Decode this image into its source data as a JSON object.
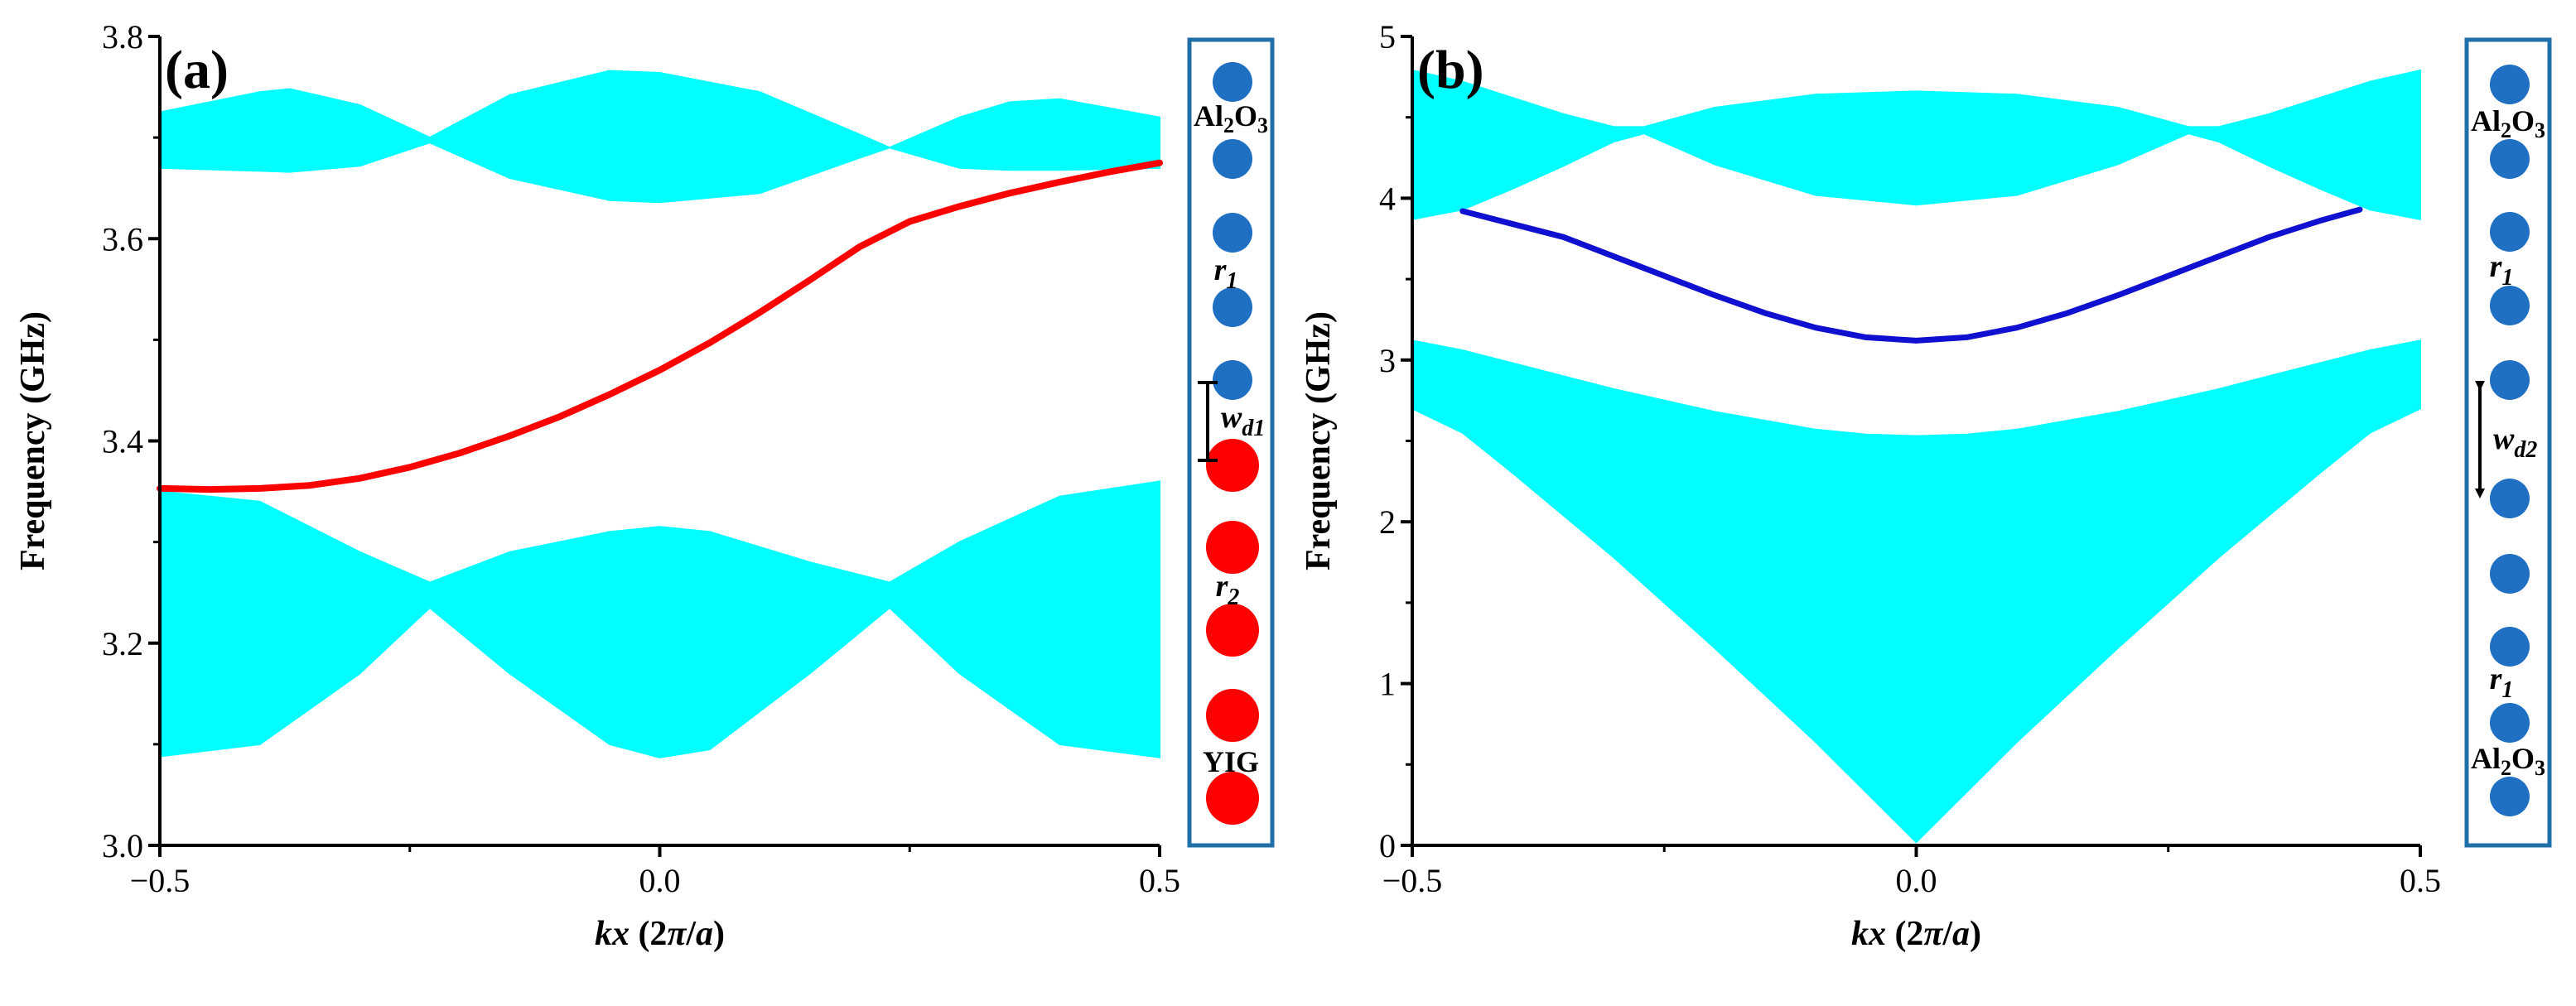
{
  "colors": {
    "band": "#00ffff",
    "edge_a": "#ff0000",
    "edge_b": "#1010d0",
    "air_rod": "#1f6fc2",
    "yig_rod": "#ff0000",
    "inset_border": "#1f6fa8"
  },
  "chart_data": [
    {
      "type": "area",
      "panel_label": "(a)",
      "title": "",
      "xlabel": "kx (2π/a)",
      "xlabel_parts": {
        "var": "kx",
        "mid": " (2",
        "pi": "π",
        "slash": "/",
        "a": "a",
        "close": ")"
      },
      "ylabel": "Frequency (GHz)",
      "xlim": [
        -0.5,
        0.5
      ],
      "ylim": [
        3.0,
        3.8
      ],
      "xticks": [
        -0.5,
        0.0,
        0.5
      ],
      "xtick_labels": [
        "−0.5",
        "0.0",
        "0.5"
      ],
      "yticks": [
        3.0,
        3.2,
        3.4,
        3.6,
        3.8
      ],
      "ytick_labels": [
        "3.0",
        "3.2",
        "3.4",
        "3.6",
        "3.8"
      ],
      "bands": [
        {
          "name": "upper bulk band",
          "x": [
            -0.5,
            -0.4,
            -0.37,
            -0.3,
            -0.23,
            -0.15,
            -0.05,
            0.0,
            0.1,
            0.2,
            0.23,
            0.3,
            0.35,
            0.4,
            0.5
          ],
          "lower": [
            3.67,
            3.667,
            3.666,
            3.672,
            3.695,
            3.66,
            3.638,
            3.636,
            3.645,
            3.68,
            3.69,
            3.67,
            3.668,
            3.668,
            3.67
          ],
          "upper": [
            3.725,
            3.745,
            3.748,
            3.732,
            3.7,
            3.742,
            3.766,
            3.764,
            3.745,
            3.703,
            3.69,
            3.72,
            3.735,
            3.738,
            3.72
          ]
        },
        {
          "name": "lower bulk band",
          "x": [
            -0.5,
            -0.4,
            -0.3,
            -0.23,
            -0.15,
            -0.05,
            0.0,
            0.05,
            0.15,
            0.23,
            0.3,
            0.4,
            0.5
          ],
          "lower": [
            3.088,
            3.1,
            3.17,
            3.235,
            3.17,
            3.1,
            3.087,
            3.095,
            3.17,
            3.235,
            3.17,
            3.1,
            3.087
          ],
          "upper": [
            3.35,
            3.34,
            3.29,
            3.26,
            3.29,
            3.31,
            3.315,
            3.31,
            3.28,
            3.26,
            3.3,
            3.345,
            3.36
          ]
        }
      ],
      "series": [
        {
          "name": "edge state",
          "x": [
            -0.5,
            -0.45,
            -0.4,
            -0.35,
            -0.3,
            -0.25,
            -0.2,
            -0.15,
            -0.1,
            -0.05,
            0.0,
            0.05,
            0.1,
            0.15,
            0.2,
            0.25,
            0.3,
            0.35,
            0.4,
            0.45,
            0.5
          ],
          "y": [
            3.353,
            3.352,
            3.353,
            3.356,
            3.363,
            3.374,
            3.388,
            3.405,
            3.424,
            3.446,
            3.47,
            3.497,
            3.527,
            3.559,
            3.592,
            3.617,
            3.632,
            3.645,
            3.656,
            3.666,
            3.675
          ]
        }
      ],
      "inset": {
        "rods": [
          "air",
          "air",
          "air",
          "air",
          "air",
          "yig",
          "yig",
          "yig",
          "yig",
          "yig"
        ],
        "labels": {
          "material_top_main": "Al",
          "material_top_sub": "2",
          "material_top_tail": "O",
          "material_top_sub2": "3",
          "r1_main": "r",
          "r1_sub": "1",
          "w_main": "w",
          "w_sub": "d1",
          "r2_main": "r",
          "r2_sub": "2",
          "material_bottom": "YIG"
        }
      }
    },
    {
      "type": "area",
      "panel_label": "(b)",
      "title": "",
      "xlabel": "kx (2π/a)",
      "xlabel_parts": {
        "var": "kx",
        "mid": " (2",
        "pi": "π",
        "slash": "/",
        "a": "a",
        "close": ")"
      },
      "ylabel": "Frequency (GHz)",
      "xlim": [
        -0.5,
        0.5
      ],
      "ylim": [
        0,
        5
      ],
      "xticks": [
        -0.5,
        0.0,
        0.5
      ],
      "xtick_labels": [
        "−0.5",
        "0.0",
        "0.5"
      ],
      "yticks": [
        0,
        1,
        2,
        3,
        4,
        5
      ],
      "ytick_labels": [
        "0",
        "1",
        "2",
        "3",
        "4",
        "5"
      ],
      "bands": [
        {
          "name": "upper bulk band",
          "x": [
            -0.5,
            -0.45,
            -0.4,
            -0.35,
            -0.3,
            -0.27,
            -0.2,
            -0.1,
            0.0,
            0.1,
            0.2,
            0.27,
            0.3,
            0.35,
            0.4,
            0.45,
            0.5
          ],
          "lower": [
            3.87,
            3.93,
            4.06,
            4.2,
            4.35,
            4.4,
            4.21,
            4.02,
            3.96,
            4.02,
            4.21,
            4.4,
            4.35,
            4.2,
            4.06,
            3.93,
            3.87
          ],
          "upper": [
            4.79,
            4.72,
            4.62,
            4.52,
            4.44,
            4.44,
            4.56,
            4.64,
            4.66,
            4.64,
            4.56,
            4.44,
            4.44,
            4.52,
            4.62,
            4.72,
            4.79
          ]
        },
        {
          "name": "lower bulk band",
          "x": [
            -0.5,
            -0.45,
            -0.4,
            -0.3,
            -0.2,
            -0.1,
            -0.05,
            0.0,
            0.05,
            0.1,
            0.2,
            0.3,
            0.4,
            0.45,
            0.5
          ],
          "lower": [
            2.7,
            2.55,
            2.3,
            1.78,
            1.22,
            0.64,
            0.33,
            0.02,
            0.33,
            0.64,
            1.22,
            1.78,
            2.3,
            2.55,
            2.7
          ],
          "upper": [
            3.12,
            3.06,
            2.98,
            2.82,
            2.68,
            2.57,
            2.54,
            2.53,
            2.54,
            2.57,
            2.68,
            2.82,
            2.98,
            3.06,
            3.12
          ]
        }
      ],
      "series": [
        {
          "name": "edge state",
          "x": [
            -0.45,
            -0.4,
            -0.35,
            -0.3,
            -0.25,
            -0.2,
            -0.15,
            -0.1,
            -0.05,
            0.0,
            0.05,
            0.1,
            0.15,
            0.2,
            0.25,
            0.3,
            0.35,
            0.4,
            0.44
          ],
          "y": [
            3.92,
            3.84,
            3.76,
            3.64,
            3.52,
            3.4,
            3.29,
            3.2,
            3.14,
            3.12,
            3.14,
            3.2,
            3.29,
            3.4,
            3.52,
            3.64,
            3.76,
            3.86,
            3.93
          ]
        }
      ],
      "inset": {
        "rods": [
          "air",
          "air",
          "air",
          "air",
          "air",
          "air",
          "air",
          "air",
          "air",
          "air"
        ],
        "labels": {
          "material_top_main": "Al",
          "material_top_sub": "2",
          "material_top_tail": "O",
          "material_top_sub2": "3",
          "r1_main": "r",
          "r1_sub": "1",
          "w_main": "w",
          "w_sub": "d2",
          "r1b_main": "r",
          "r1b_sub": "1",
          "material_bottom_main": "Al",
          "material_bottom_sub": "2",
          "material_bottom_tail": "O",
          "material_bottom_sub2": "3"
        }
      }
    }
  ]
}
